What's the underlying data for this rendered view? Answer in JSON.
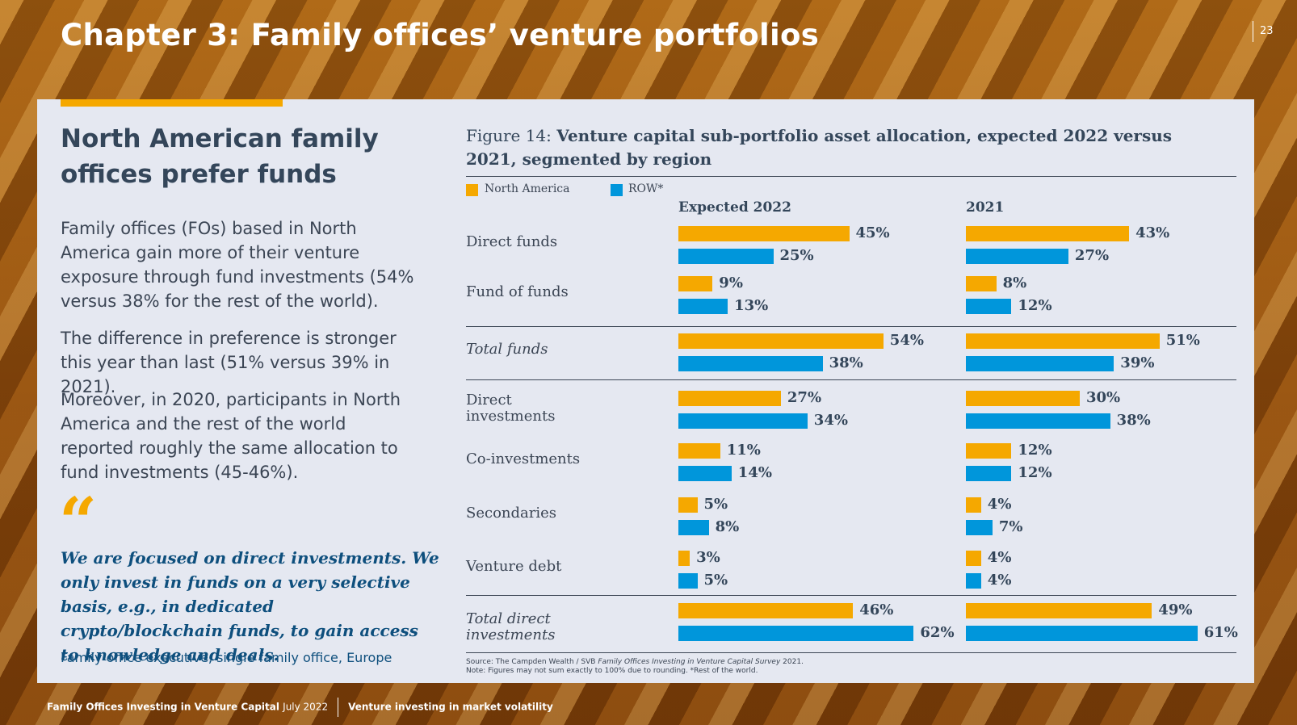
{
  "page": {
    "title": "Chapter 3: Family offices’ venture portfolios",
    "number": "23"
  },
  "left": {
    "heading": "North American family offices prefer funds",
    "paragraphs": [
      "Family offices (FOs) based in North America gain more of their venture exposure through fund investments (54% versus 38% for the rest of the world).",
      "The difference in preference is stronger this year than last (51% versus 39% in 2021).",
      "Moreover, in 2020, participants in North America and the rest of the world reported roughly the same allocation to fund investments (45-46%)."
    ],
    "quote_mark": "“",
    "quote": "We are focused on direct investments. We only invest in funds on a very selective basis, e.g., in dedicated crypto/blockchain funds, to gain access to knowledge and deals.",
    "attribution": "Family office executive, single family office, Europe"
  },
  "figure": {
    "label": "Figure 14: ",
    "title": "Venture capital sub-portfolio asset allocation, expected 2022 versus 2021, segmented by region",
    "source_prefix": "Source: The Campden Wealth / SVB ",
    "source_italic": "Family Offices Investing in Venture Capital Survey",
    "source_suffix": " 2021.",
    "note": "Note: Figures may not sum exactly to 100% due to rounding. *Rest of the world."
  },
  "chart_data": {
    "type": "bar",
    "orientation": "horizontal",
    "title": "Venture capital sub-portfolio asset allocation, expected 2022 versus 2021, segmented by region",
    "panels": [
      "Expected 2022",
      "2021"
    ],
    "series": [
      {
        "name": "North America",
        "color": "#f5a800"
      },
      {
        "name": "ROW*",
        "color": "#0096db"
      }
    ],
    "categories": [
      "Direct funds",
      "Fund of funds",
      "Total funds",
      "Direct investments",
      "Co-investments",
      "Secondaries",
      "Venture debt",
      "Total direct investments"
    ],
    "rows": [
      {
        "category": "Direct funds",
        "total": false,
        "values": {
          "Expected 2022": [
            45,
            25
          ],
          "2021": [
            43,
            27
          ]
        },
        "labels": {
          "Expected 2022": [
            "45%",
            "25%"
          ],
          "2021": [
            "43%",
            "27%"
          ]
        }
      },
      {
        "category": "Fund of funds",
        "total": false,
        "values": {
          "Expected 2022": [
            9,
            13
          ],
          "2021": [
            8,
            12
          ]
        },
        "labels": {
          "Expected 2022": [
            "9%",
            "13%"
          ],
          "2021": [
            "8%",
            "12%"
          ]
        }
      },
      {
        "category": "Total funds",
        "total": true,
        "values": {
          "Expected 2022": [
            54,
            38
          ],
          "2021": [
            51,
            39
          ]
        },
        "labels": {
          "Expected 2022": [
            "54%",
            "38%"
          ],
          "2021": [
            "51%",
            "39%"
          ]
        }
      },
      {
        "category": "Direct investments",
        "total": false,
        "values": {
          "Expected 2022": [
            27,
            34
          ],
          "2021": [
            30,
            38
          ]
        },
        "labels": {
          "Expected 2022": [
            "27%",
            "34%"
          ],
          "2021": [
            "30%",
            "38%"
          ]
        }
      },
      {
        "category": "Co-investments",
        "total": false,
        "values": {
          "Expected 2022": [
            11,
            14
          ],
          "2021": [
            12,
            12
          ]
        },
        "labels": {
          "Expected 2022": [
            "11%",
            "14%"
          ],
          "2021": [
            "12%",
            "12%"
          ]
        }
      },
      {
        "category": "Secondaries",
        "total": false,
        "values": {
          "Expected 2022": [
            5,
            8
          ],
          "2021": [
            4,
            7
          ]
        },
        "labels": {
          "Expected 2022": [
            "5%",
            "8%"
          ],
          "2021": [
            "4%",
            "7%"
          ]
        }
      },
      {
        "category": "Venture debt",
        "total": false,
        "values": {
          "Expected 2022": [
            3,
            5
          ],
          "2021": [
            4,
            4
          ]
        },
        "labels": {
          "Expected 2022": [
            "3%",
            "5%"
          ],
          "2021": [
            "4%",
            "4%"
          ]
        }
      },
      {
        "category": "Total direct investments",
        "total": true,
        "values": {
          "Expected 2022": [
            46,
            62
          ],
          "2021": [
            49,
            61
          ]
        },
        "labels": {
          "Expected 2022": [
            "46%",
            "62%"
          ],
          "2021": [
            "49%",
            "61%"
          ]
        }
      }
    ],
    "xlim": [
      0,
      70
    ],
    "legend": "top-left"
  },
  "footer": {
    "publication": "Family Offices Investing in Venture Capital",
    "date": "July 2022",
    "section": "Venture investing in market volatility"
  }
}
